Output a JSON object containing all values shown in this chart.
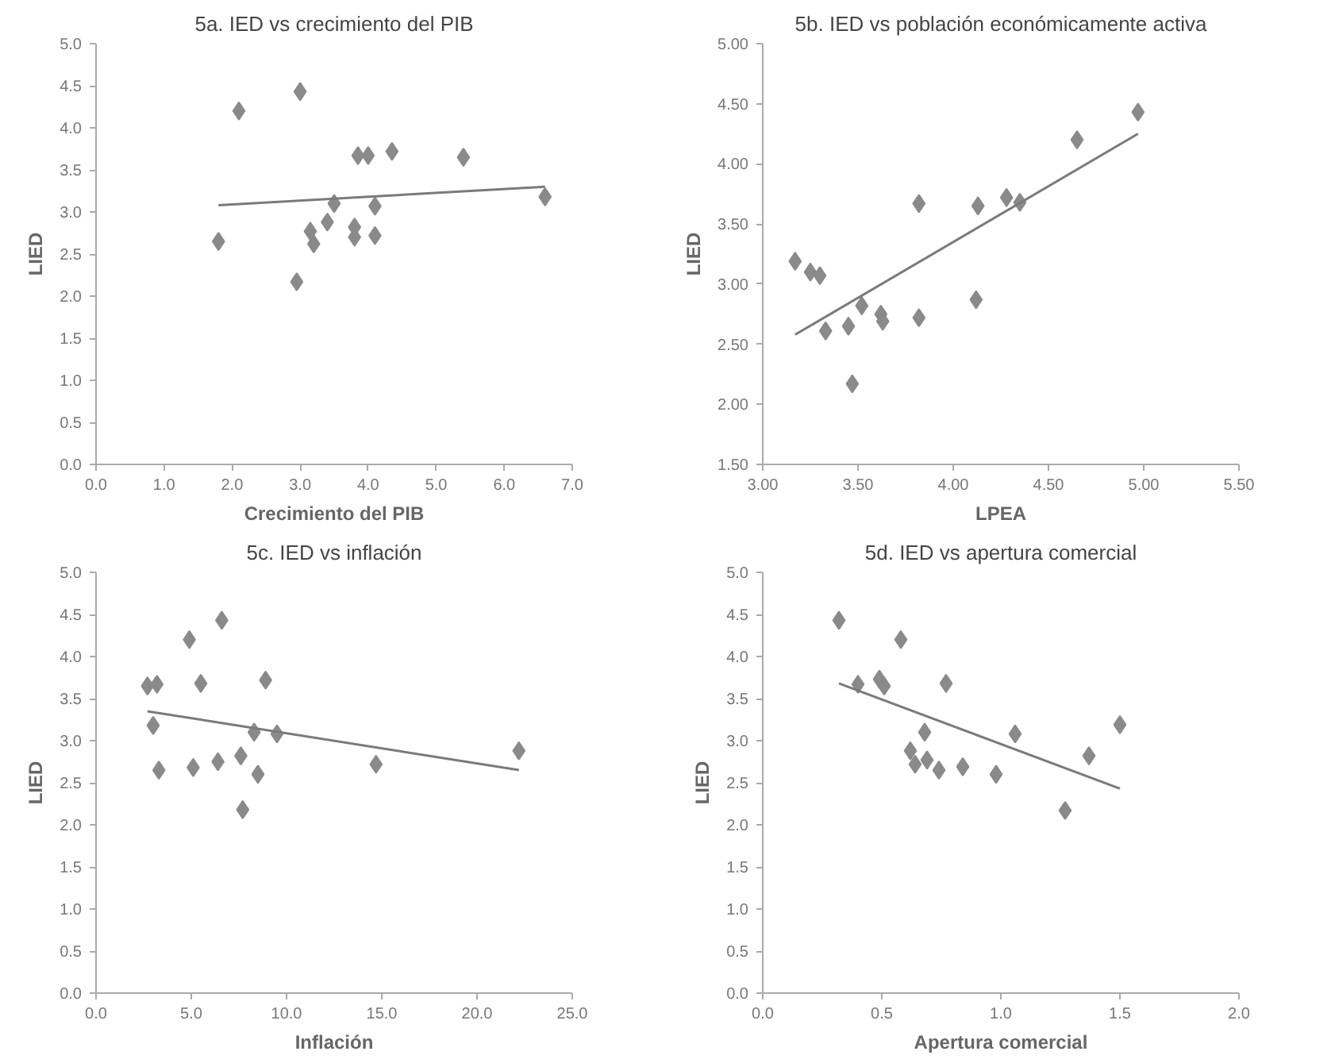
{
  "chart_data": [
    {
      "type": "scatter",
      "title": "5a. IED vs crecimiento del PIB",
      "xlabel": "Crecimiento del PIB",
      "ylabel": "LIED",
      "grid": false,
      "xlim": [
        0,
        7
      ],
      "ylim": [
        0,
        5
      ],
      "xticks": [
        {
          "value": 0,
          "label": "0.0"
        },
        {
          "value": 1,
          "label": "1.0"
        },
        {
          "value": 2,
          "label": "2.0"
        },
        {
          "value": 3,
          "label": "3.0"
        },
        {
          "value": 4,
          "label": "4.0"
        },
        {
          "value": 5,
          "label": "5.0"
        },
        {
          "value": 6,
          "label": "6.0"
        },
        {
          "value": 7,
          "label": "7.0"
        }
      ],
      "yticks": [
        {
          "value": 0,
          "label": "0.0"
        },
        0.5,
        {
          "value": 1,
          "label": "1.0"
        },
        1.5,
        {
          "value": 2,
          "label": "2.0"
        },
        2.5,
        {
          "value": 3,
          "label": "3.0"
        },
        3.5,
        {
          "value": 4,
          "label": "4.0"
        },
        4.5,
        {
          "value": 5,
          "label": "5.0"
        }
      ],
      "series": [
        {
          "type": "scatter",
          "marker": "diamond",
          "color": "#8a8a8a",
          "x": [
            1.8,
            2.1,
            3.0,
            2.95,
            3.15,
            3.2,
            3.4,
            3.5,
            3.8,
            3.8,
            3.85,
            4.0,
            4.1,
            4.1,
            4.35,
            5.4,
            6.6
          ],
          "values": [
            2.65,
            4.2,
            4.43,
            2.17,
            2.77,
            2.62,
            2.88,
            3.1,
            2.7,
            2.82,
            3.67,
            3.67,
            3.07,
            2.72,
            3.72,
            3.65,
            3.18
          ]
        },
        {
          "type": "line",
          "marker": "none",
          "line_style": "solid",
          "color": "#7a7a7a",
          "x": [
            1.8,
            6.6
          ],
          "values": [
            3.08,
            3.3
          ]
        }
      ]
    },
    {
      "type": "scatter",
      "title": "5b. IED vs población económicamente activa",
      "xlabel": "LPEA",
      "ylabel": "LIED",
      "grid": false,
      "xlim": [
        3,
        5.5
      ],
      "ylim": [
        1.5,
        5
      ],
      "xticks": [
        {
          "value": 3,
          "label": "3.00"
        },
        {
          "value": 3.5,
          "label": "3.50"
        },
        {
          "value": 4,
          "label": "4.00"
        },
        {
          "value": 4.5,
          "label": "4.50"
        },
        {
          "value": 5,
          "label": "5.00"
        },
        {
          "value": 5.5,
          "label": "5.50"
        }
      ],
      "yticks": [
        {
          "value": 1.5,
          "label": "1.50"
        },
        {
          "value": 2,
          "label": "2.00"
        },
        {
          "value": 2.5,
          "label": "2.50"
        },
        {
          "value": 3,
          "label": "3.00"
        },
        {
          "value": 3.5,
          "label": "3.50"
        },
        {
          "value": 4,
          "label": "4.00"
        },
        {
          "value": 4.5,
          "label": "4.50"
        },
        {
          "value": 5,
          "label": "5.00"
        }
      ],
      "series": [
        {
          "type": "scatter",
          "marker": "diamond",
          "color": "#8a8a8a",
          "x": [
            3.17,
            3.25,
            3.3,
            3.33,
            3.45,
            3.47,
            3.52,
            3.62,
            3.63,
            3.82,
            3.82,
            4.12,
            4.13,
            4.28,
            4.35,
            4.65,
            4.97
          ],
          "values": [
            3.19,
            3.1,
            3.07,
            2.61,
            2.65,
            2.17,
            2.82,
            2.75,
            2.69,
            3.67,
            2.72,
            2.87,
            3.65,
            3.72,
            3.68,
            4.2,
            4.43
          ]
        },
        {
          "type": "line",
          "marker": "none",
          "line_style": "solid",
          "color": "#7a7a7a",
          "x": [
            3.17,
            4.97
          ],
          "values": [
            2.58,
            4.25
          ]
        }
      ]
    },
    {
      "type": "scatter",
      "title": "5c. IED vs inflación",
      "xlabel": "Inflación",
      "ylabel": "LIED",
      "grid": false,
      "xlim": [
        0,
        25
      ],
      "ylim": [
        0,
        5
      ],
      "xticks": [
        {
          "value": 0,
          "label": "0.0"
        },
        {
          "value": 5,
          "label": "5.0"
        },
        {
          "value": 10,
          "label": "10.0"
        },
        {
          "value": 15,
          "label": "15.0"
        },
        {
          "value": 20,
          "label": "20.0"
        },
        {
          "value": 25,
          "label": "25.0"
        }
      ],
      "yticks": [
        {
          "value": 0,
          "label": "0.0"
        },
        0.5,
        {
          "value": 1,
          "label": "1.0"
        },
        1.5,
        {
          "value": 2,
          "label": "2.0"
        },
        2.5,
        {
          "value": 3,
          "label": "3.0"
        },
        3.5,
        {
          "value": 4,
          "label": "4.0"
        },
        4.5,
        {
          "value": 5,
          "label": "5.0"
        }
      ],
      "series": [
        {
          "type": "scatter",
          "marker": "diamond",
          "color": "#8a8a8a",
          "x": [
            2.7,
            3.2,
            3.0,
            3.3,
            4.9,
            5.5,
            5.1,
            6.6,
            6.4,
            7.6,
            7.7,
            8.3,
            8.5,
            8.9,
            9.5,
            14.7,
            22.2
          ],
          "values": [
            3.65,
            3.67,
            3.18,
            2.65,
            4.2,
            3.68,
            2.68,
            4.43,
            2.75,
            2.82,
            2.18,
            3.1,
            2.6,
            3.72,
            3.08,
            2.72,
            2.88
          ]
        },
        {
          "type": "line",
          "marker": "none",
          "line_style": "solid",
          "color": "#7a7a7a",
          "x": [
            2.7,
            22.2
          ],
          "values": [
            3.35,
            2.65
          ]
        }
      ]
    },
    {
      "type": "scatter",
      "title": "5d. IED vs apertura comercial",
      "xlabel": "Apertura comercial",
      "ylabel": "LIED",
      "grid": false,
      "xlim": [
        0,
        2
      ],
      "ylim": [
        0,
        5
      ],
      "xticks": [
        {
          "value": 0,
          "label": "0.0"
        },
        0.5,
        {
          "value": 1,
          "label": "1.0"
        },
        1.5,
        {
          "value": 2,
          "label": "2.0"
        }
      ],
      "yticks": [
        {
          "value": 0,
          "label": "0.0"
        },
        0.5,
        {
          "value": 1,
          "label": "1.0"
        },
        1.5,
        {
          "value": 2,
          "label": "2.0"
        },
        2.5,
        {
          "value": 3,
          "label": "3.0"
        },
        3.5,
        {
          "value": 4,
          "label": "4.0"
        },
        4.5,
        {
          "value": 5,
          "label": "5.0"
        }
      ],
      "series": [
        {
          "type": "scatter",
          "marker": "diamond",
          "color": "#8a8a8a",
          "x": [
            0.32,
            0.4,
            0.49,
            0.51,
            0.58,
            0.62,
            0.64,
            0.68,
            0.69,
            0.74,
            0.77,
            0.84,
            0.98,
            1.06,
            1.27,
            1.37,
            1.5
          ],
          "values": [
            4.43,
            3.67,
            3.73,
            3.65,
            4.2,
            2.88,
            2.72,
            3.1,
            2.77,
            2.65,
            3.68,
            2.69,
            2.6,
            3.08,
            2.17,
            2.82,
            3.19
          ]
        },
        {
          "type": "line",
          "marker": "none",
          "line_style": "solid",
          "color": "#7a7a7a",
          "x": [
            0.32,
            1.5
          ],
          "values": [
            3.68,
            2.43
          ]
        }
      ]
    }
  ]
}
